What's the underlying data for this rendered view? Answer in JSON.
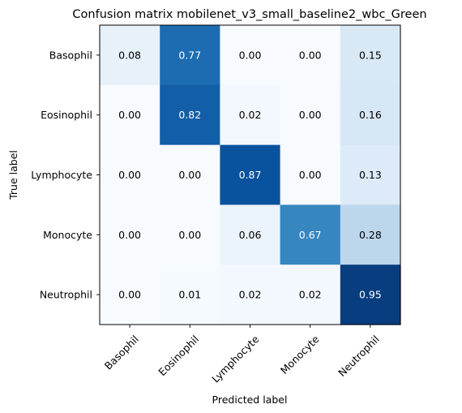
{
  "chart_data": {
    "type": "heatmap",
    "title": "Confusion matrix mobilenet_v3_small_baseline2_wbc_Green",
    "xlabel": "Predicted label",
    "ylabel": "True label",
    "colormap": "Blues",
    "value_range": [
      0,
      1
    ],
    "grid": false,
    "x_categories": [
      "Basophil",
      "Eosinophil",
      "Lymphocyte",
      "Monocyte",
      "Neutrophil"
    ],
    "y_categories": [
      "Basophil",
      "Eosinophil",
      "Lymphocyte",
      "Monocyte",
      "Neutrophil"
    ],
    "values": [
      [
        0.08,
        0.77,
        0.0,
        0.0,
        0.15
      ],
      [
        0.0,
        0.82,
        0.02,
        0.0,
        0.16
      ],
      [
        0.0,
        0.0,
        0.87,
        0.0,
        0.13
      ],
      [
        0.0,
        0.0,
        0.06,
        0.67,
        0.28
      ],
      [
        0.0,
        0.01,
        0.02,
        0.02,
        0.95
      ]
    ],
    "cell_labels": [
      [
        "0.08",
        "0.77",
        "0.00",
        "0.00",
        "0.15"
      ],
      [
        "0.00",
        "0.82",
        "0.02",
        "0.00",
        "0.16"
      ],
      [
        "0.00",
        "0.00",
        "0.87",
        "0.00",
        "0.13"
      ],
      [
        "0.00",
        "0.00",
        "0.06",
        "0.67",
        "0.28"
      ],
      [
        "0.00",
        "0.01",
        "0.02",
        "0.02",
        "0.95"
      ]
    ]
  }
}
